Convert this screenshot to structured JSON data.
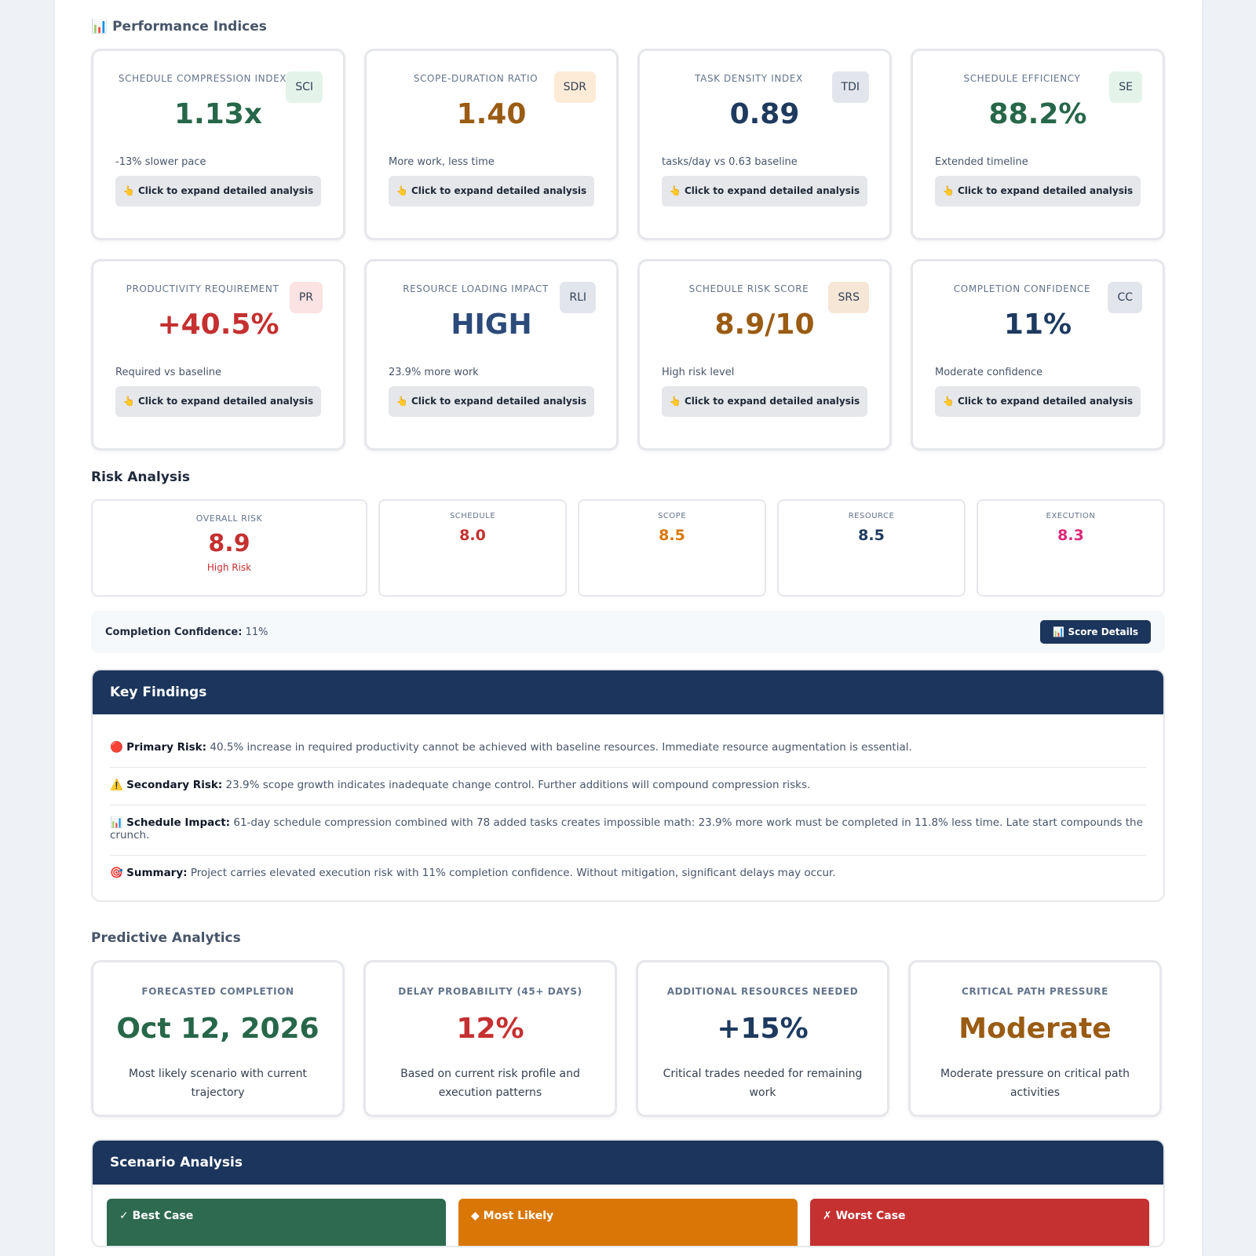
{
  "performance": {
    "title": "📊 Performance Indices",
    "cards": [
      {
        "label": "SCHEDULE COMPRESSION INDEX",
        "badge": "SCI",
        "value": "1.13x",
        "note": "-13% slower pace",
        "action": "👆 Click to expand detailed analysis"
      },
      {
        "label": "SCOPE-DURATION RATIO",
        "badge": "SDR",
        "value": "1.40",
        "note": "More work, less time",
        "action": "👆 Click to expand detailed analysis"
      },
      {
        "label": "TASK DENSITY INDEX",
        "badge": "TDI",
        "value": "0.89",
        "note": "tasks/day vs 0.63 baseline",
        "action": "👆 Click to expand detailed analysis"
      },
      {
        "label": "SCHEDULE EFFICIENCY",
        "badge": "SE",
        "value": "88.2%",
        "note": "Extended timeline",
        "action": "👆 Click to expand detailed analysis"
      },
      {
        "label": "PRODUCTIVITY REQUIREMENT",
        "badge": "PR",
        "value": "+40.5%",
        "note": "Required vs baseline",
        "action": "👆 Click to expand detailed analysis"
      },
      {
        "label": "RESOURCE LOADING IMPACT",
        "badge": "RLI",
        "value": "HIGH",
        "note": "23.9% more work",
        "action": "👆 Click to expand detailed analysis"
      },
      {
        "label": "SCHEDULE RISK SCORE",
        "badge": "SRS",
        "value": "8.9/10",
        "note": "High risk level",
        "action": "👆 Click to expand detailed analysis"
      },
      {
        "label": "COMPLETION CONFIDENCE",
        "badge": "CC",
        "value": "11%",
        "note": "Moderate confidence",
        "action": "👆 Click to expand detailed analysis"
      }
    ]
  },
  "risk": {
    "title": "Risk Analysis",
    "overall": {
      "label": "OVERALL RISK",
      "value": "8.9",
      "level": "High Risk"
    },
    "components": [
      {
        "label": "SCHEDULE",
        "value": "8.0"
      },
      {
        "label": "SCOPE",
        "value": "8.5"
      },
      {
        "label": "RESOURCE",
        "value": "8.5"
      },
      {
        "label": "EXECUTION",
        "value": "8.3"
      }
    ],
    "confidence": {
      "label": "Completion Confidence:",
      "value": "11%"
    },
    "button": "📊 Score Details"
  },
  "findings": {
    "title": "Key Findings",
    "items": [
      {
        "icon": "🔴",
        "label": "Primary Risk:",
        "text": "40.5% increase in required productivity cannot be achieved with baseline resources. Immediate resource augmentation is essential."
      },
      {
        "icon": "⚠️",
        "label": "Secondary Risk:",
        "text": "23.9% scope growth indicates inadequate change control. Further additions will compound compression risks."
      },
      {
        "icon": "📊",
        "label": "Schedule Impact:",
        "text": "61-day schedule compression combined with 78 added tasks creates impossible math: 23.9% more work must be completed in 11.8% less time. Late start compounds the crunch."
      },
      {
        "icon": "🎯",
        "label": "Summary:",
        "text": "Project carries elevated execution risk with 11% completion confidence. Without mitigation, significant delays may occur."
      }
    ]
  },
  "predictive": {
    "title": "Predictive Analytics",
    "cards": [
      {
        "label": "FORECASTED COMPLETION",
        "value": "Oct 12, 2026",
        "note": "Most likely scenario with current trajectory"
      },
      {
        "label": "DELAY PROBABILITY (45+ DAYS)",
        "value": "12%",
        "note": "Based on current risk profile and execution patterns"
      },
      {
        "label": "ADDITIONAL RESOURCES NEEDED",
        "value": "+15%",
        "note": "Critical trades needed for remaining work"
      },
      {
        "label": "CRITICAL PATH PRESSURE",
        "value": "Moderate",
        "note": "Moderate pressure on critical path activities"
      }
    ]
  },
  "scenarios": {
    "title": "Scenario Analysis",
    "items": [
      "✓ Best Case",
      "◆ Most Likely",
      "✗ Worst Case"
    ]
  }
}
